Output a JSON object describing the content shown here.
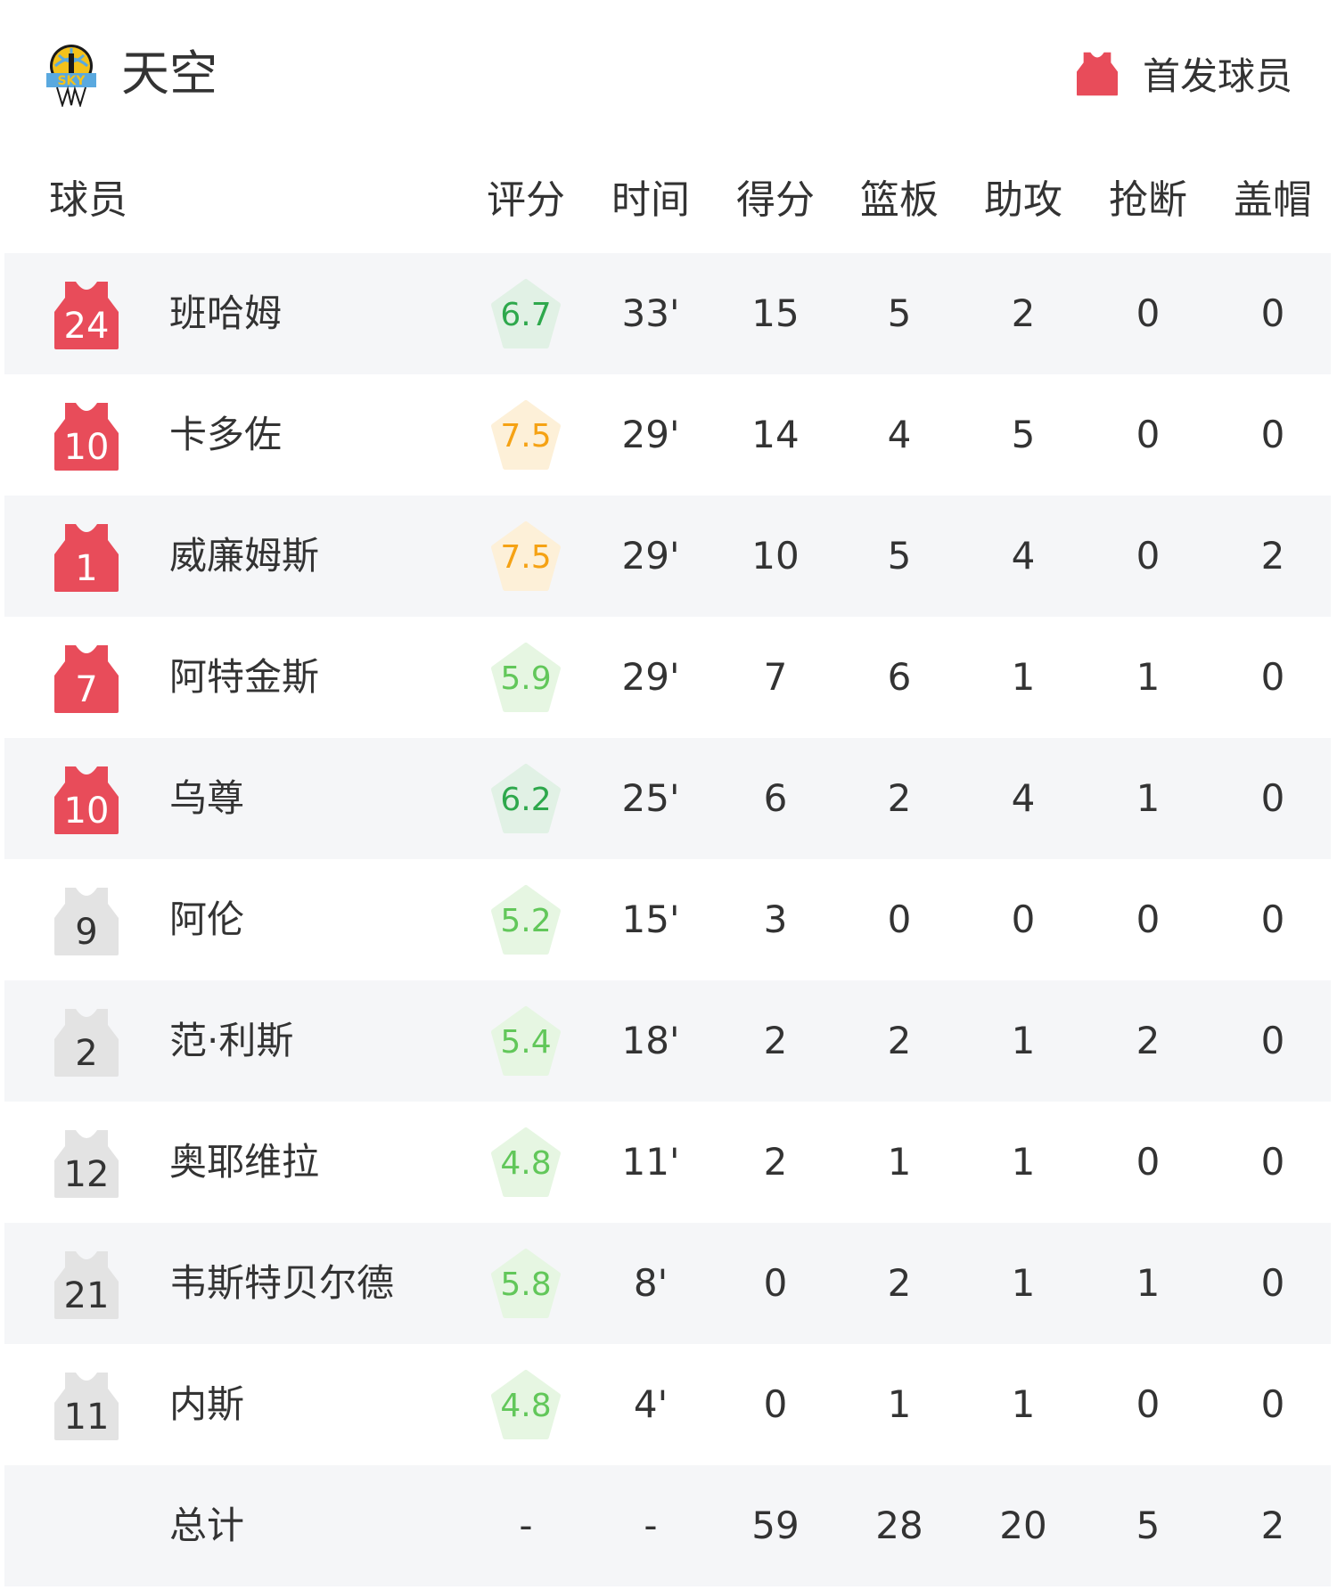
{
  "header": {
    "team_name": "天空",
    "logo_text": "SKY",
    "legend_label": "首发球员"
  },
  "colors": {
    "starter": "#e84c5a",
    "bench": "#e3e3e3",
    "rating_high_text": "#f5a214",
    "rating_high_bg": "#fdf0d8",
    "rating_mid_text": "#2ea84c",
    "rating_mid_bg": "#e1f1e5",
    "rating_low_text": "#62c75a",
    "rating_low_bg": "#e6f6e2"
  },
  "columns": [
    "球员",
    "评分",
    "时间",
    "得分",
    "篮板",
    "助攻",
    "抢断",
    "盖帽"
  ],
  "players": [
    {
      "number": "24",
      "name": "班哈姆",
      "starter": true,
      "rating": "6.7",
      "tier": "mid",
      "time": "33'",
      "pts": "15",
      "reb": "5",
      "ast": "2",
      "stl": "0",
      "blk": "0"
    },
    {
      "number": "10",
      "name": "卡多佐",
      "starter": true,
      "rating": "7.5",
      "tier": "high",
      "time": "29'",
      "pts": "14",
      "reb": "4",
      "ast": "5",
      "stl": "0",
      "blk": "0"
    },
    {
      "number": "1",
      "name": "威廉姆斯",
      "starter": true,
      "rating": "7.5",
      "tier": "high",
      "time": "29'",
      "pts": "10",
      "reb": "5",
      "ast": "4",
      "stl": "0",
      "blk": "2"
    },
    {
      "number": "7",
      "name": "阿特金斯",
      "starter": true,
      "rating": "5.9",
      "tier": "low",
      "time": "29'",
      "pts": "7",
      "reb": "6",
      "ast": "1",
      "stl": "1",
      "blk": "0"
    },
    {
      "number": "10",
      "name": "乌尊",
      "starter": true,
      "rating": "6.2",
      "tier": "mid",
      "time": "25'",
      "pts": "6",
      "reb": "2",
      "ast": "4",
      "stl": "1",
      "blk": "0"
    },
    {
      "number": "9",
      "name": "阿伦",
      "starter": false,
      "rating": "5.2",
      "tier": "low",
      "time": "15'",
      "pts": "3",
      "reb": "0",
      "ast": "0",
      "stl": "0",
      "blk": "0"
    },
    {
      "number": "2",
      "name": "范·利斯",
      "starter": false,
      "rating": "5.4",
      "tier": "low",
      "time": "18'",
      "pts": "2",
      "reb": "2",
      "ast": "1",
      "stl": "2",
      "blk": "0"
    },
    {
      "number": "12",
      "name": "奥耶维拉",
      "starter": false,
      "rating": "4.8",
      "tier": "low",
      "time": "11'",
      "pts": "2",
      "reb": "1",
      "ast": "1",
      "stl": "0",
      "blk": "0"
    },
    {
      "number": "21",
      "name": "韦斯特贝尔德",
      "starter": false,
      "rating": "5.8",
      "tier": "low",
      "time": "8'",
      "pts": "0",
      "reb": "2",
      "ast": "1",
      "stl": "1",
      "blk": "0"
    },
    {
      "number": "11",
      "name": "内斯",
      "starter": false,
      "rating": "4.8",
      "tier": "low",
      "time": "4'",
      "pts": "0",
      "reb": "1",
      "ast": "1",
      "stl": "0",
      "blk": "0"
    }
  ],
  "totals": {
    "label": "总计",
    "rating": "-",
    "time": "-",
    "pts": "59",
    "reb": "28",
    "ast": "20",
    "stl": "5",
    "blk": "2"
  }
}
